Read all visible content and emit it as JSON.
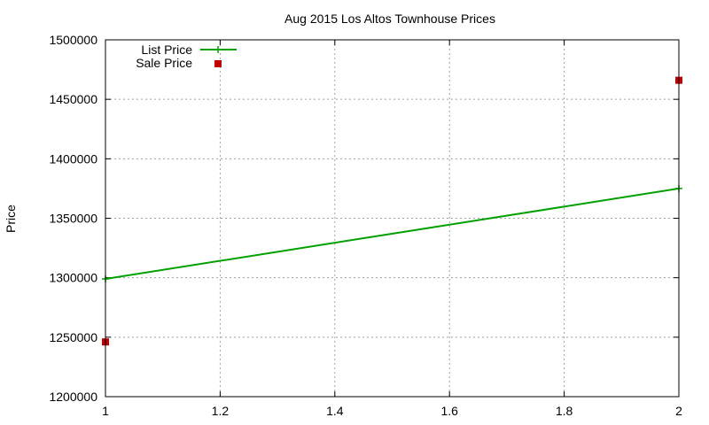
{
  "chart_data": {
    "type": "line",
    "title": "Aug 2015 Los Altos Townhouse Prices",
    "xlabel": "",
    "ylabel": "Price",
    "xlim": [
      1,
      2
    ],
    "ylim": [
      1200000,
      1500000
    ],
    "xticks": [
      1,
      1.2,
      1.4,
      1.6,
      1.8,
      2
    ],
    "xtick_labels": [
      "1",
      "1.2",
      "1.4",
      "1.6",
      "1.8",
      "2"
    ],
    "yticks": [
      1200000,
      1250000,
      1300000,
      1350000,
      1400000,
      1450000,
      1500000
    ],
    "ytick_labels": [
      "1200000",
      "1250000",
      "1300000",
      "1350000",
      "1400000",
      "1450000",
      "1500000"
    ],
    "grid": true,
    "legend_position": "top-left",
    "series": [
      {
        "name": "List Price",
        "style": "line+cross",
        "color": "#00a000",
        "x": [
          1,
          2
        ],
        "y": [
          1299000,
          1375000
        ]
      },
      {
        "name": "Sale Price",
        "style": "square-points",
        "color": "#c00000",
        "x": [
          1,
          2
        ],
        "y": [
          1246000,
          1466000
        ]
      }
    ]
  }
}
